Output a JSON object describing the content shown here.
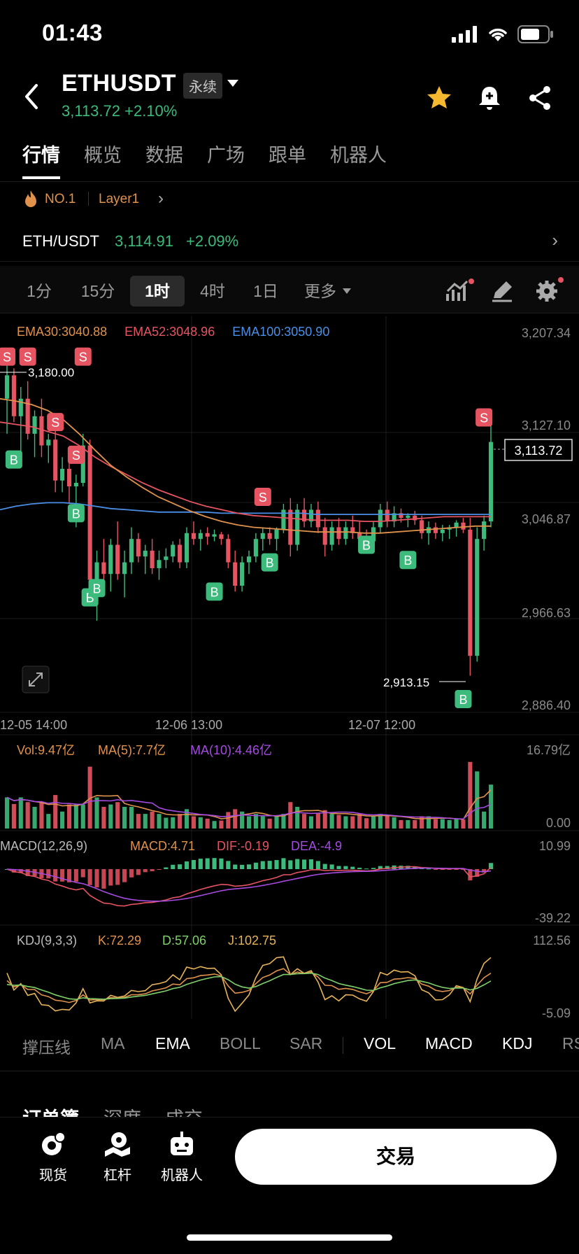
{
  "status_bar": {
    "time": "01:43"
  },
  "header": {
    "symbol": "ETHUSDT",
    "contract_type": "永续",
    "price_line": "3,113.72 +2.10%"
  },
  "main_tabs": [
    "行情",
    "概览",
    "数据",
    "广场",
    "跟单",
    "机器人"
  ],
  "tags": {
    "rank": "NO.1",
    "sector": "Layer1"
  },
  "pair": {
    "name": "ETH/USDT",
    "price": "3,114.91",
    "change": "+2.09%"
  },
  "time_tabs": [
    "1分",
    "15分",
    "1时",
    "4时",
    "1日",
    "更多"
  ],
  "active_time_tab": "1时",
  "colors": {
    "up": "#3dbb7c",
    "down": "#e65462",
    "ema30": "#e0924c",
    "ema52": "#e65462",
    "ema100": "#4a8fe7",
    "ma10": "#a54be0",
    "kdj_k": "#e0924c",
    "kdj_d": "#7fd16a",
    "kdj_j": "#e7b45a"
  },
  "ema_legend": {
    "ema30": "EMA30:3040.88",
    "ema52": "EMA52:3048.96",
    "ema100": "EMA100:3050.90"
  },
  "price_axis": [
    "3,207.34",
    "3,127.10",
    "3,046.87",
    "2,966.63",
    "2,886.40"
  ],
  "current_price_tag": "3,113.72",
  "high_marker": "3,180.00",
  "low_marker": "2,913.15",
  "time_axis": [
    "12-05 14:00",
    "12-06 13:00",
    "12-07 12:00"
  ],
  "volume": {
    "vol": "Vol:9.47亿",
    "ma5": "MA(5):7.7亿",
    "ma10": "MA(10):4.46亿",
    "max": "16.79亿",
    "min": "0.00"
  },
  "macd": {
    "name": "MACD(12,26,9)",
    "macd": "MACD:4.71",
    "dif": "DIF:-0.19",
    "dea": "DEA:-4.9",
    "max": "10.99",
    "min": "-39.22"
  },
  "kdj": {
    "name": "KDJ(9,3,3)",
    "k": "K:72.29",
    "d": "D:57.06",
    "j": "J:102.75",
    "max": "112.56",
    "min": "-5.09"
  },
  "indicator_tabs": [
    "撑压线",
    "MA",
    "EMA",
    "BOLL",
    "SAR",
    "VOL",
    "MACD",
    "KDJ",
    "RS"
  ],
  "orderbook_tabs": [
    "订单簿",
    "深度",
    "成交"
  ],
  "bottom_nav": {
    "spot": "现货",
    "margin": "杠杆",
    "bot": "机器人",
    "trade": "交易"
  },
  "signal_labels": {
    "buy": "B",
    "sell": "S"
  },
  "chart_data": {
    "type": "candlestick",
    "interval": "1时",
    "ylim": [
      2886.4,
      3207.34
    ],
    "x_ticks": [
      "12-05 14:00",
      "12-06 13:00",
      "12-07 12:00"
    ],
    "candles": [
      [
        3150,
        3180,
        3120,
        3170
      ],
      [
        3170,
        3176,
        3130,
        3135
      ],
      [
        3135,
        3160,
        3100,
        3150
      ],
      [
        3150,
        3165,
        3115,
        3120
      ],
      [
        3120,
        3140,
        3100,
        3135
      ],
      [
        3135,
        3150,
        3100,
        3110
      ],
      [
        3110,
        3120,
        3095,
        3115
      ],
      [
        3115,
        3135,
        3070,
        3080
      ],
      [
        3080,
        3100,
        3070,
        3090
      ],
      [
        3090,
        3105,
        3060,
        3075
      ],
      [
        3075,
        3085,
        3040,
        3078
      ],
      [
        3078,
        3120,
        3075,
        3110
      ],
      [
        3110,
        3115,
        2990,
        2995
      ],
      [
        2995,
        3020,
        2960,
        3010
      ],
      [
        3010,
        3030,
        2990,
        3000
      ],
      [
        3000,
        3030,
        2985,
        3025
      ],
      [
        3025,
        3045,
        2995,
        3000
      ],
      [
        3000,
        3020,
        2980,
        3010
      ],
      [
        3010,
        3040,
        3000,
        3030
      ],
      [
        3030,
        3035,
        3010,
        3015
      ],
      [
        3015,
        3025,
        3000,
        3020
      ],
      [
        3020,
        3030,
        3000,
        3005
      ],
      [
        3005,
        3020,
        2995,
        3012
      ],
      [
        3012,
        3022,
        3005,
        3015
      ],
      [
        3015,
        3028,
        3010,
        3025
      ],
      [
        3025,
        3030,
        3005,
        3010
      ],
      [
        3010,
        3040,
        3005,
        3035
      ],
      [
        3035,
        3045,
        3025,
        3030
      ],
      [
        3030,
        3038,
        3020,
        3035
      ],
      [
        3035,
        3040,
        3025,
        3032
      ],
      [
        3032,
        3038,
        3028,
        3034
      ],
      [
        3034,
        3036,
        3025,
        3030
      ],
      [
        3030,
        3034,
        3005,
        3010
      ],
      [
        3010,
        3020,
        2985,
        2990
      ],
      [
        2990,
        3015,
        2985,
        3010
      ],
      [
        3010,
        3020,
        3000,
        3015
      ],
      [
        3015,
        3035,
        3010,
        3030
      ],
      [
        3030,
        3040,
        3020,
        3035
      ],
      [
        3035,
        3040,
        3025,
        3030
      ],
      [
        3030,
        3040,
        3020,
        3038
      ],
      [
        3038,
        3060,
        3035,
        3055
      ],
      [
        3055,
        3065,
        3015,
        3025
      ],
      [
        3025,
        3060,
        3020,
        3055
      ],
      [
        3055,
        3065,
        3040,
        3045
      ],
      [
        3045,
        3060,
        3040,
        3055
      ],
      [
        3055,
        3062,
        3035,
        3040
      ],
      [
        3040,
        3048,
        3015,
        3025
      ],
      [
        3025,
        3045,
        3020,
        3040
      ],
      [
        3040,
        3048,
        3025,
        3030
      ],
      [
        3030,
        3045,
        3025,
        3040
      ],
      [
        3040,
        3050,
        3030,
        3035
      ],
      [
        3035,
        3045,
        3020,
        3030
      ],
      [
        3030,
        3038,
        3022,
        3028
      ],
      [
        3028,
        3045,
        3024,
        3040
      ],
      [
        3040,
        3060,
        3035,
        3055
      ],
      [
        3055,
        3062,
        3040,
        3045
      ],
      [
        3045,
        3058,
        3040,
        3052
      ],
      [
        3052,
        3056,
        3044,
        3048
      ],
      [
        3048,
        3052,
        3040,
        3050
      ],
      [
        3050,
        3054,
        3042,
        3046
      ],
      [
        3046,
        3050,
        3030,
        3035
      ],
      [
        3035,
        3045,
        3025,
        3040
      ],
      [
        3040,
        3044,
        3030,
        3035
      ],
      [
        3035,
        3042,
        3028,
        3038
      ],
      [
        3038,
        3042,
        3030,
        3040
      ],
      [
        3040,
        3046,
        3032,
        3044
      ],
      [
        3044,
        3048,
        3035,
        3038
      ],
      [
        3038,
        3048,
        2913,
        2930
      ],
      [
        2930,
        3040,
        2925,
        3030
      ],
      [
        3030,
        3050,
        3020,
        3045
      ],
      [
        3045,
        3127,
        3040,
        3113
      ]
    ],
    "ema30": [
      3150,
      3148,
      3145,
      3140,
      3132,
      3120,
      3106,
      3093,
      3083,
      3074,
      3066,
      3060,
      3054,
      3049,
      3045,
      3042,
      3040,
      3039,
      3038,
      3037,
      3036,
      3036,
      3036,
      3035,
      3035,
      3036,
      3037,
      3038,
      3039,
      3040,
      3041,
      3041
    ],
    "ema52": [
      3130,
      3128,
      3126,
      3122,
      3118,
      3110,
      3100,
      3092,
      3085,
      3078,
      3072,
      3067,
      3062,
      3058,
      3055,
      3052,
      3050,
      3049,
      3048,
      3047,
      3046,
      3046,
      3046,
      3045,
      3045,
      3046,
      3047,
      3048,
      3049,
      3049,
      3049,
      3049
    ],
    "ema100": [
      3055,
      3058,
      3060,
      3061,
      3061,
      3060,
      3058,
      3056,
      3055,
      3054,
      3053,
      3053,
      3053,
      3053,
      3052,
      3052,
      3052,
      3052,
      3052,
      3052,
      3051,
      3051,
      3051,
      3051,
      3051,
      3051,
      3051,
      3051,
      3051,
      3051,
      3051,
      3051
    ]
  }
}
